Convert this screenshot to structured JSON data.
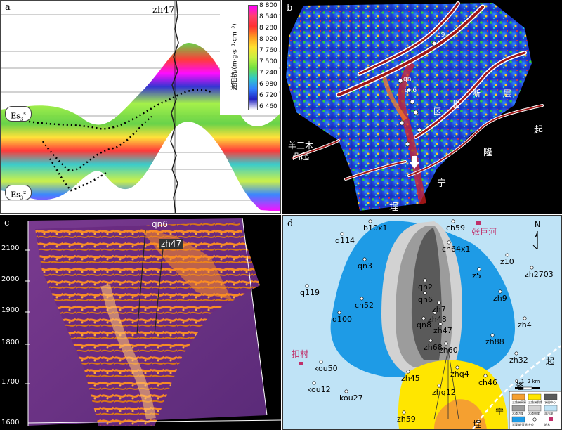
{
  "panel_a": {
    "label": "a",
    "well": "zh47",
    "formation_top": "Es",
    "formation_top_sub": "3",
    "formation_top_sup": "s",
    "formation_bottom": "Es",
    "formation_bottom_sub": "3",
    "formation_bottom_sup": "z",
    "colorbar_title": "波阻抗/(m·g·s⁻¹·cm⁻³)",
    "colorbar_ticks": [
      "8 800",
      "8 540",
      "8 280",
      "8 020",
      "7 760",
      "7 500",
      "7 240",
      "6 980",
      "6 720",
      "6 460"
    ],
    "colorbar_colors": [
      "#ff00ff",
      "#ff4070",
      "#ff3030",
      "#ff9a20",
      "#ffe030",
      "#c8f040",
      "#70e040",
      "#30c8c8",
      "#3080ff",
      "#2020c0",
      "#ffffff"
    ]
  },
  "panel_b": {
    "label": "b",
    "text_yangsanmu": "羊三木",
    "text_tuqi": "凸起",
    "text_duan": "断",
    "text_bei": "北",
    "text_qu": "区",
    "text_ceng": "层",
    "text_qi": "起",
    "text_long": "隆",
    "text_ning": "宁",
    "text_bu": "埕",
    "well_qn": "qn",
    "well_qn6": "qn6",
    "well_59": "59"
  },
  "panel_c": {
    "label": "c",
    "wells": [
      "qn6",
      "zh47"
    ],
    "y_ticks": [
      "2100",
      "2000",
      "1900",
      "1800",
      "1700",
      "1600"
    ]
  },
  "panel_d": {
    "label": "d",
    "wells": [
      "b10x1",
      "ch59",
      "q114",
      "ch64x1",
      "z10",
      "zh2703",
      "qn3",
      "z5",
      "q119",
      "qn2",
      "zh9",
      "ch52",
      "qn6",
      "zh7",
      "q100",
      "qn8",
      "zh48",
      "zh4",
      "zh47",
      "zh88",
      "zh68",
      "zh60",
      "zh32",
      "kou50",
      "zh45",
      "zhq4",
      "ch46",
      "kou12",
      "zhq12",
      "kou27",
      "zh59"
    ],
    "place_zhangjuhe": "张巨河",
    "place_koucun": "扣村",
    "text_qi": "起",
    "text_long": "隆",
    "text_ning": "宁",
    "text_cheng": "埕",
    "north": "N",
    "scale": "0  1  2 km",
    "legend": [
      "三角洲平原",
      "三角洲前缘",
      "水道中心",
      "水道边缘",
      "水道侧缘",
      "滨浅湖",
      "半深湖-深湖",
      "井位",
      "地名"
    ]
  }
}
